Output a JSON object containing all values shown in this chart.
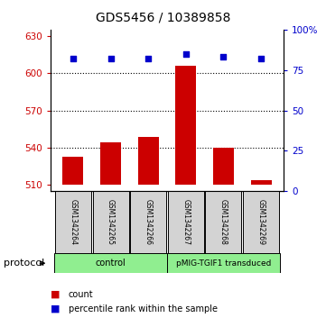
{
  "title": "GDS5456 / 10389858",
  "samples": [
    "GSM1342264",
    "GSM1342265",
    "GSM1342266",
    "GSM1342267",
    "GSM1342268",
    "GSM1342269"
  ],
  "counts": [
    533,
    544,
    549,
    606,
    540,
    514
  ],
  "percentile_ranks": [
    82,
    82,
    82,
    85,
    83,
    82
  ],
  "ylim_left": [
    505,
    635
  ],
  "ylim_right": [
    0,
    100
  ],
  "yticks_left": [
    510,
    540,
    570,
    600,
    630
  ],
  "yticks_right": [
    0,
    25,
    50,
    75,
    100
  ],
  "ytick_labels_right": [
    "0",
    "25",
    "50",
    "75",
    "100%"
  ],
  "grid_values": [
    540,
    570,
    600
  ],
  "bar_color": "#cc0000",
  "dot_color": "#0000cc",
  "control_label": "control",
  "pmig_label": "pMIG-TGIF1 transduced",
  "protocol_label": "protocol",
  "legend_count_label": "count",
  "legend_pct_label": "percentile rank within the sample",
  "background_color": "#ffffff",
  "tick_color_left": "#cc0000",
  "tick_color_right": "#0000cc",
  "sample_box_color": "#d3d3d3",
  "protocol_box_color": "#90ee90",
  "title_fontsize": 10,
  "bar_width": 0.55
}
